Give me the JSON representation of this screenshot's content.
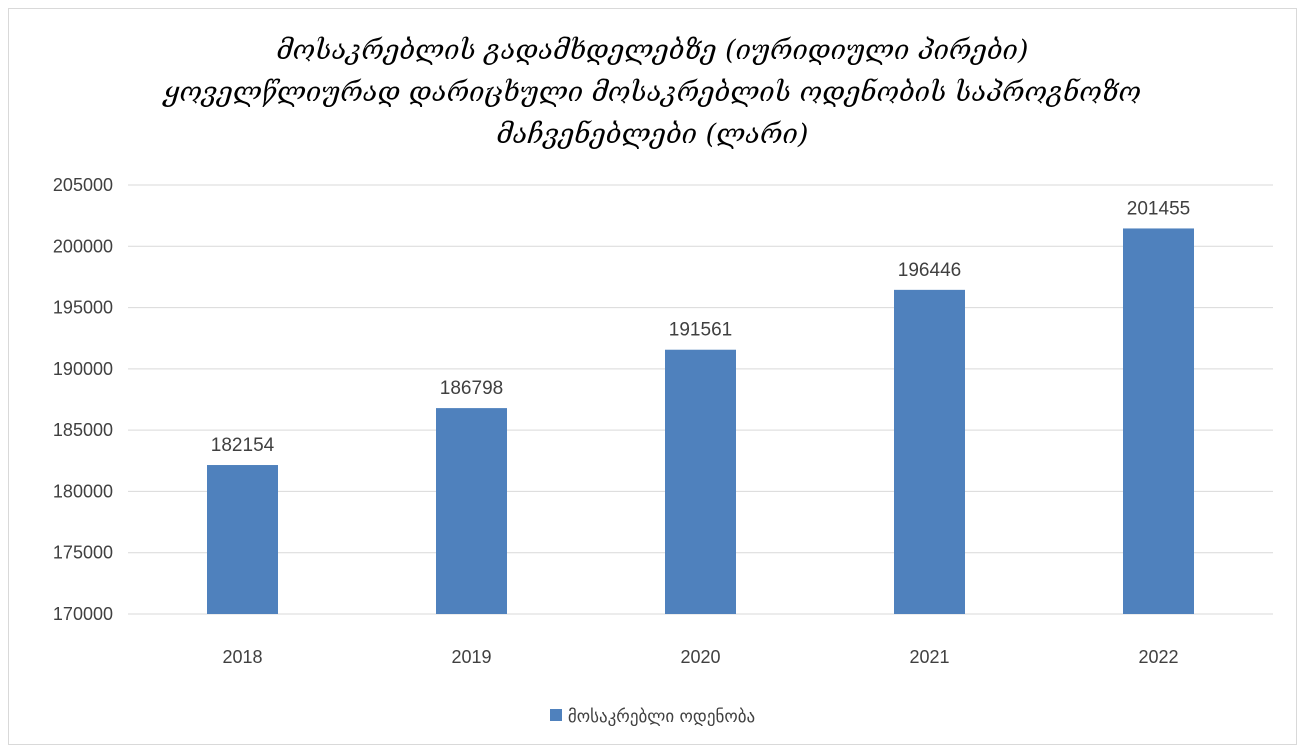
{
  "chart_data": {
    "type": "bar",
    "title_lines": [
      "მოსაკრებლის გადამხდელებზე  (იურიდიული პირები)",
      "ყოველწლიურად დარიცხული მოსაკრებლის ოდენობის საპროგნოზო",
      "მაჩვენებლები (ლარი)"
    ],
    "categories": [
      "2018",
      "2019",
      "2020",
      "2021",
      "2022"
    ],
    "series": [
      {
        "name": "მოსაკრებლი ოდენობა",
        "values": [
          182154,
          186798,
          191561,
          196446,
          201455
        ],
        "color": "#4f81bd"
      }
    ],
    "ylim": [
      170000,
      205000
    ],
    "yticks": [
      170000,
      175000,
      180000,
      185000,
      190000,
      195000,
      200000,
      205000
    ],
    "grid": true,
    "legend_position": "bottom",
    "data_labels": true
  }
}
